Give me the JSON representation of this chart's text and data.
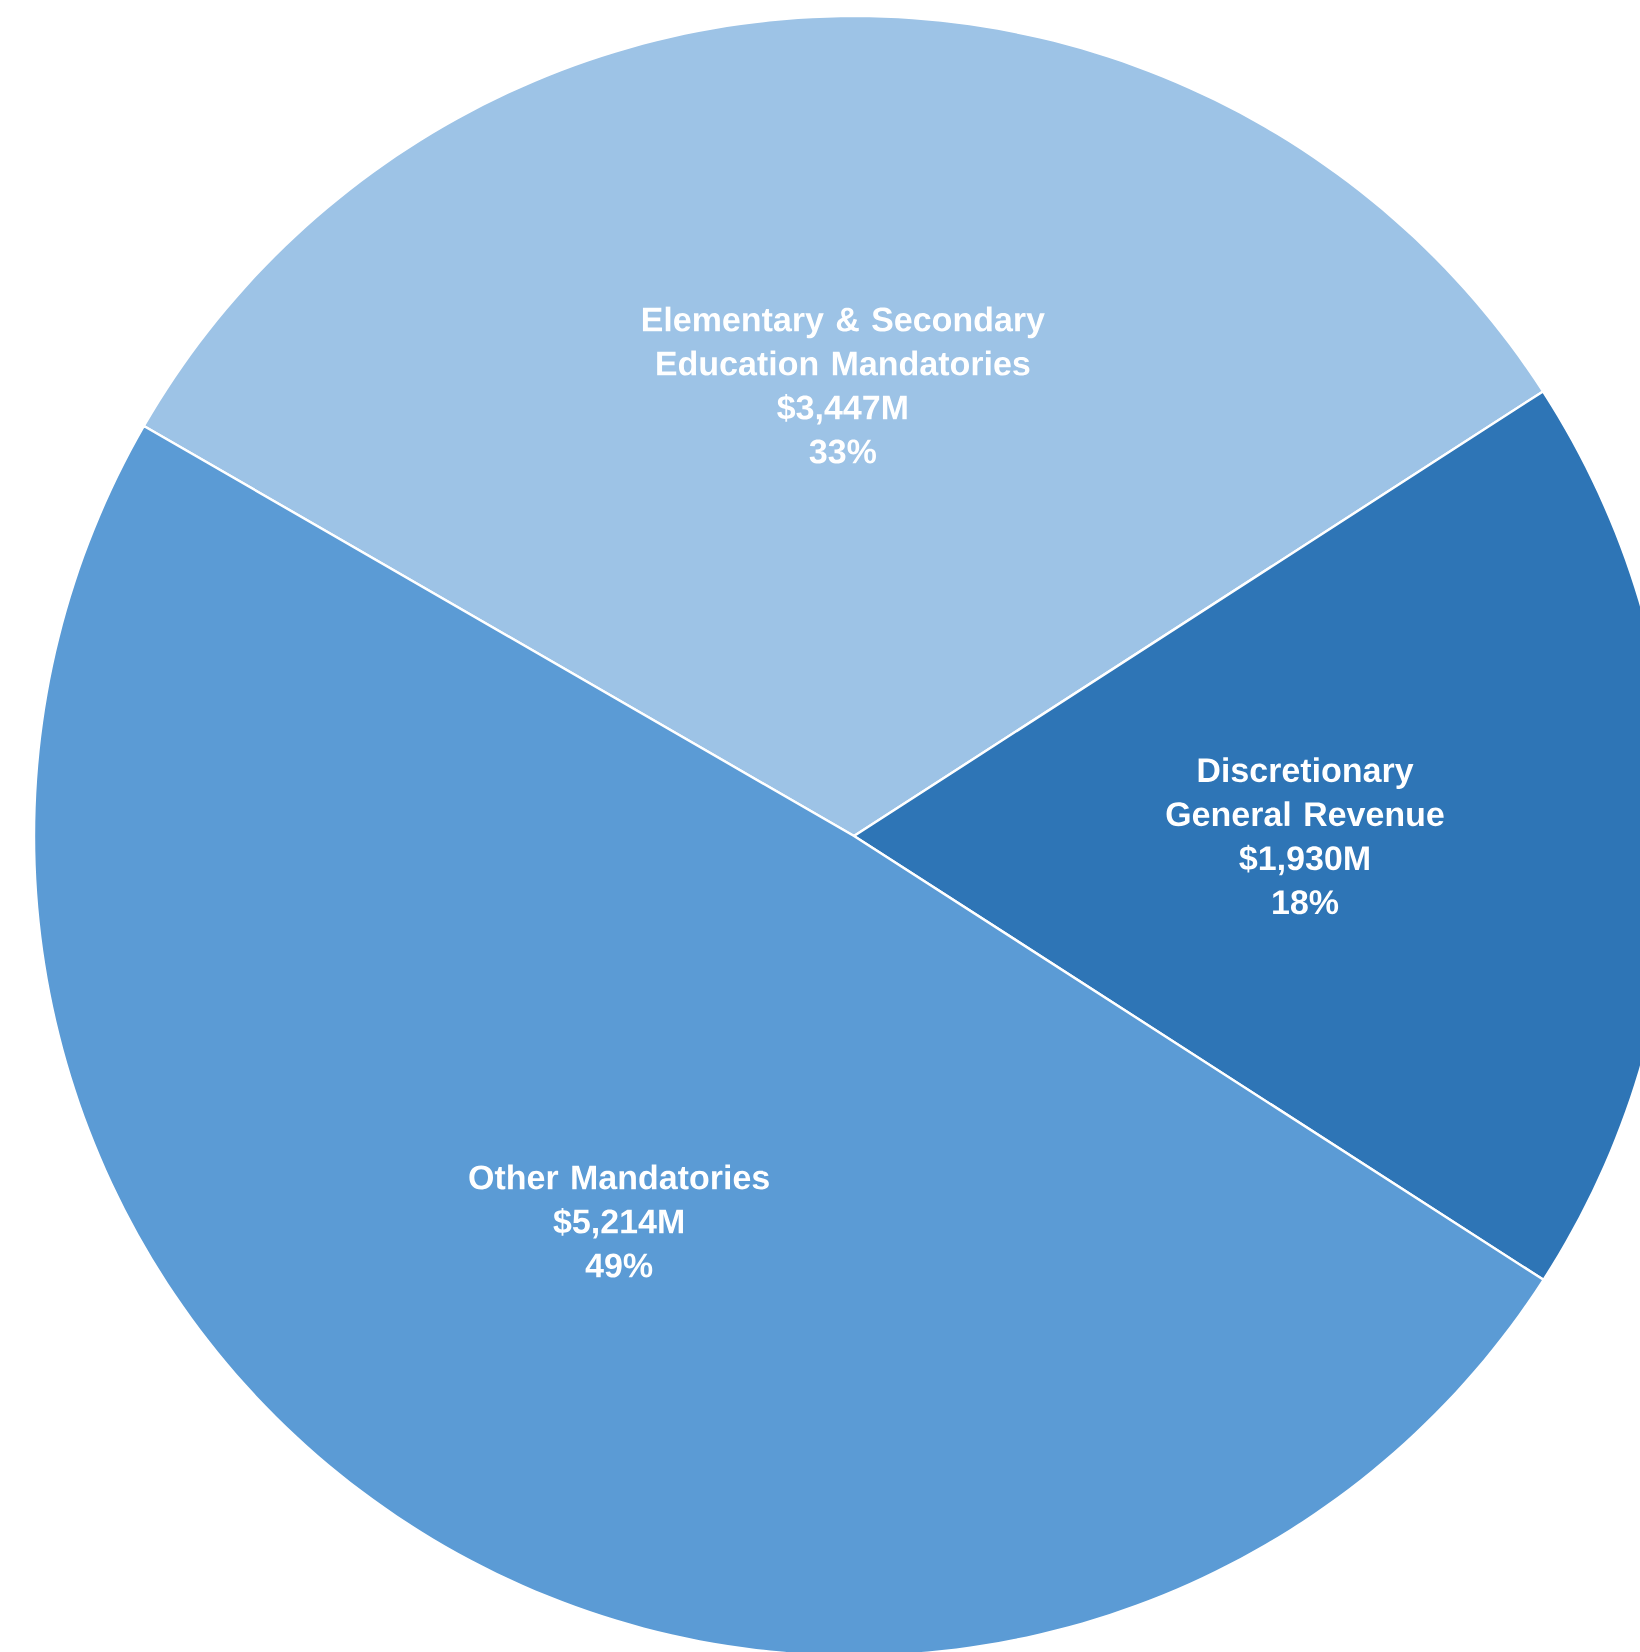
{
  "chart_data": {
    "type": "pie",
    "categories": [
      "Elementary & Secondary Education Mandatories",
      "Discretionary General Revenue",
      "Other Mandatories"
    ],
    "values": [
      3447,
      1930,
      5214
    ],
    "colors": [
      "#9dc3e6",
      "#2e75b6",
      "#5b9bd5"
    ],
    "value_labels": [
      "$3,447M",
      "$1,930M",
      "$5,214M"
    ],
    "annotations": [
      "33%",
      "18%",
      "49%"
    ]
  }
}
